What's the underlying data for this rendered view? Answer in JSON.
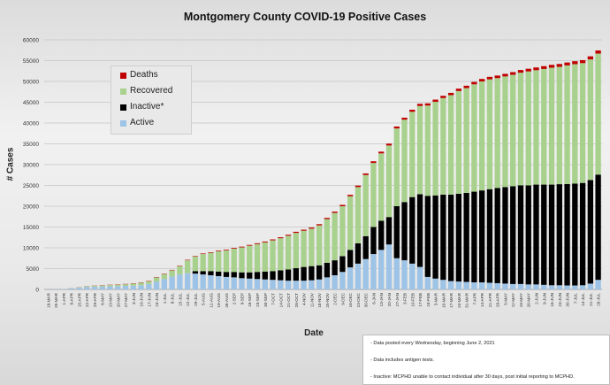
{
  "chart_data": {
    "type": "bar",
    "stacked": true,
    "title": "Montgomery County COVID-19 Positive Cases",
    "xlabel": "Date",
    "ylabel": "# Cases",
    "ylim": [
      0,
      60000
    ],
    "yticks": [
      0,
      5000,
      10000,
      15000,
      20000,
      25000,
      30000,
      35000,
      40000,
      45000,
      50000,
      55000,
      60000
    ],
    "grid": true,
    "legend_position": "upper-left",
    "categories": [
      "18-MAR",
      "25-MAR",
      "1-APR",
      "8-APR",
      "15-APR",
      "22-APR",
      "29-APR",
      "6-MAY",
      "13-MAY",
      "20-MAY",
      "27-MAY",
      "3-JUN",
      "10-JUN",
      "17-JUN",
      "24-JUN",
      "1-JUL",
      "8-JUL",
      "15-JUL",
      "22-JUL",
      "29-JUL",
      "5-AUG",
      "12-AUG",
      "19-AUG",
      "26-AUG",
      "2-SEP",
      "9-SEP",
      "16-SEP",
      "23-SEP",
      "30-SEP",
      "7-OCT",
      "14-OCT",
      "21-OCT",
      "28-OCT",
      "4-NOV",
      "11-NOV",
      "18-NOV",
      "25-NOV",
      "2-DEC",
      "9-DEC",
      "16-DEC",
      "23-DEC",
      "30-DEC",
      "6-JAN",
      "13-JAN",
      "20-JAN",
      "27-JAN",
      "3-FEB",
      "10-FEB",
      "17-FEB",
      "24-FEB",
      "3-MAR",
      "10-MAR",
      "17-MAR",
      "24-MAR",
      "31-MAR",
      "7-APR",
      "14-APR",
      "21-APR",
      "28-APR",
      "5-MAY",
      "12-MAY",
      "19-MAY",
      "26-MAY",
      "2-JUN",
      "9-JUN",
      "16-JUN",
      "23-JUN",
      "30-JUN",
      "7-JUL",
      "14-JUL",
      "21-JUL",
      "28-JUL"
    ],
    "series": [
      {
        "name": "Active",
        "color": "#9dc3e6",
        "values": [
          30,
          60,
          120,
          250,
          420,
          600,
          680,
          720,
          760,
          800,
          850,
          900,
          1000,
          1300,
          1900,
          2500,
          3100,
          3600,
          3900,
          3800,
          3600,
          3400,
          3200,
          3000,
          2900,
          2700,
          2600,
          2500,
          2400,
          2300,
          2200,
          2100,
          2100,
          2100,
          2200,
          2400,
          2900,
          3400,
          4200,
          5300,
          6200,
          7300,
          8500,
          9500,
          10800,
          7500,
          7000,
          6200,
          5400,
          3000,
          2600,
          2300,
          2000,
          1900,
          1800,
          1700,
          1700,
          1600,
          1500,
          1400,
          1300,
          1300,
          1200,
          1200,
          1100,
          1000,
          1000,
          950,
          950,
          1000,
          1400,
          2300
        ]
      },
      {
        "name": "Inactive*",
        "color": "#000000",
        "values": [
          0,
          0,
          0,
          0,
          0,
          0,
          0,
          0,
          0,
          0,
          0,
          0,
          0,
          0,
          0,
          0,
          0,
          0,
          0,
          600,
          800,
          1000,
          1100,
          1200,
          1300,
          1400,
          1500,
          1700,
          1900,
          2100,
          2400,
          2700,
          3000,
          3300,
          3400,
          3400,
          3500,
          3600,
          3800,
          4200,
          4900,
          5500,
          6500,
          7000,
          6600,
          12500,
          14000,
          16000,
          17500,
          19500,
          20000,
          20500,
          20800,
          21100,
          21400,
          21800,
          22100,
          22500,
          22900,
          23200,
          23500,
          23700,
          23800,
          24000,
          24100,
          24200,
          24300,
          24400,
          24500,
          24600,
          24900,
          25300
        ]
      },
      {
        "name": "Recovered",
        "color": "#a9d18e",
        "values": [
          0,
          0,
          0,
          50,
          100,
          150,
          200,
          250,
          300,
          350,
          400,
          500,
          600,
          700,
          1000,
          1200,
          1500,
          2000,
          3100,
          3500,
          4100,
          4400,
          4900,
          5200,
          5600,
          6000,
          6400,
          6700,
          7000,
          7400,
          7700,
          8100,
          8500,
          8700,
          9000,
          9600,
          10500,
          11400,
          12000,
          12900,
          13500,
          14700,
          15400,
          16200,
          17200,
          18700,
          19800,
          20500,
          21200,
          21700,
          22500,
          23200,
          23900,
          24700,
          25200,
          25800,
          26200,
          26400,
          26400,
          26600,
          26800,
          27100,
          27400,
          27500,
          27800,
          28100,
          28200,
          28500,
          28700,
          28800,
          29000,
          29100
        ]
      },
      {
        "name": "Deaths",
        "color": "#c00000",
        "values": [
          0,
          0,
          0,
          10,
          20,
          30,
          40,
          50,
          55,
          60,
          65,
          70,
          75,
          80,
          85,
          90,
          95,
          100,
          110,
          120,
          130,
          140,
          150,
          160,
          170,
          180,
          190,
          200,
          210,
          220,
          230,
          240,
          250,
          260,
          270,
          280,
          290,
          300,
          320,
          340,
          360,
          380,
          400,
          420,
          440,
          460,
          480,
          500,
          510,
          520,
          530,
          540,
          550,
          560,
          570,
          580,
          590,
          600,
          610,
          620,
          630,
          640,
          650,
          660,
          670,
          680,
          690,
          700,
          710,
          720,
          730,
          740
        ]
      }
    ]
  },
  "legend_items": [
    {
      "label": "Deaths",
      "color": "#c00000"
    },
    {
      "label": "Recovered",
      "color": "#a9d18e"
    },
    {
      "label": "Inactive*",
      "color": "#000000"
    },
    {
      "label": "Active",
      "color": "#9dc3e6"
    }
  ],
  "notes": [
    "- Data posted every Wednesday, beginning June 2, 2021",
    "- Data includes antigen tests.",
    "- Inactive: MCPHD unable to contact individual after 30 days, post initial reporting to MCPHD."
  ]
}
